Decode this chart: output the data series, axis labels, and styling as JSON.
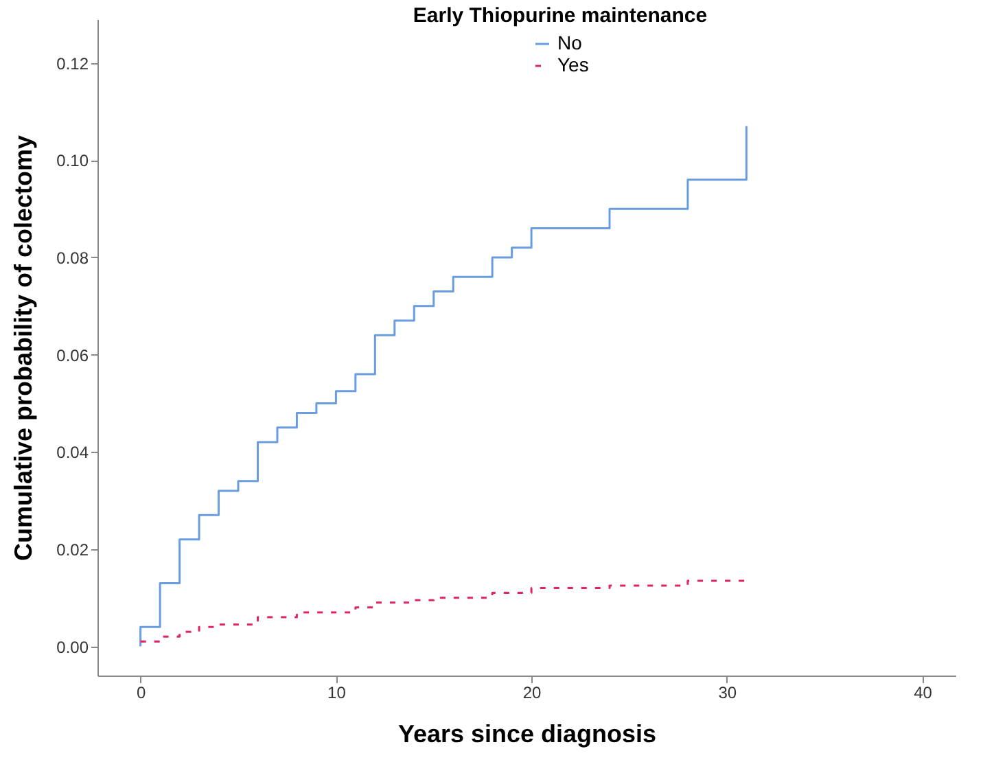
{
  "chart_data": {
    "type": "step",
    "xlabel": "Years since diagnosis",
    "ylabel": "Cumulative probability of colectomy",
    "legend_title": "Early Thiopurine maintenance",
    "legend": "top",
    "grid": false,
    "marker": "none",
    "xlim": [
      -2.2,
      41.7
    ],
    "xticks": [
      0,
      10,
      20,
      30,
      40
    ],
    "ylim": [
      -0.006,
      0.129
    ],
    "yticks": [
      {
        "value": 0,
        "label": "0.00"
      },
      {
        "value": 0.02,
        "label": "0.02"
      },
      {
        "value": 0.04,
        "label": "0.04"
      },
      {
        "value": 0.06,
        "label": "0.06"
      },
      {
        "value": 0.08,
        "label": "0.08"
      },
      {
        "value": 0.1,
        "label": "0.10"
      },
      {
        "value": 0.12,
        "label": "0.12"
      }
    ],
    "series": [
      {
        "name": "No",
        "color": "#6a9de0",
        "line_style": "solid",
        "x": [
          0,
          0,
          1,
          2,
          3,
          4,
          5,
          6,
          7,
          8,
          9,
          10,
          11,
          12,
          13,
          14,
          15,
          16,
          18,
          19,
          20,
          24,
          28,
          31,
          31
        ],
        "values": [
          0,
          0.004,
          0.013,
          0.022,
          0.027,
          0.032,
          0.034,
          0.042,
          0.045,
          0.048,
          0.05,
          0.0525,
          0.056,
          0.064,
          0.067,
          0.07,
          0.073,
          0.076,
          0.08,
          0.082,
          0.086,
          0.09,
          0.096,
          0.096,
          0.107
        ]
      },
      {
        "name": "Yes",
        "color": "#e0245e",
        "line_style": "dashed",
        "x": [
          0,
          1,
          2,
          3,
          4,
          6,
          8,
          11,
          12,
          14,
          15,
          18,
          20,
          24,
          28,
          31
        ],
        "values": [
          0.001,
          0.002,
          0.003,
          0.004,
          0.0045,
          0.006,
          0.007,
          0.008,
          0.009,
          0.0095,
          0.01,
          0.011,
          0.012,
          0.0125,
          0.0135,
          0.0135
        ]
      }
    ]
  }
}
